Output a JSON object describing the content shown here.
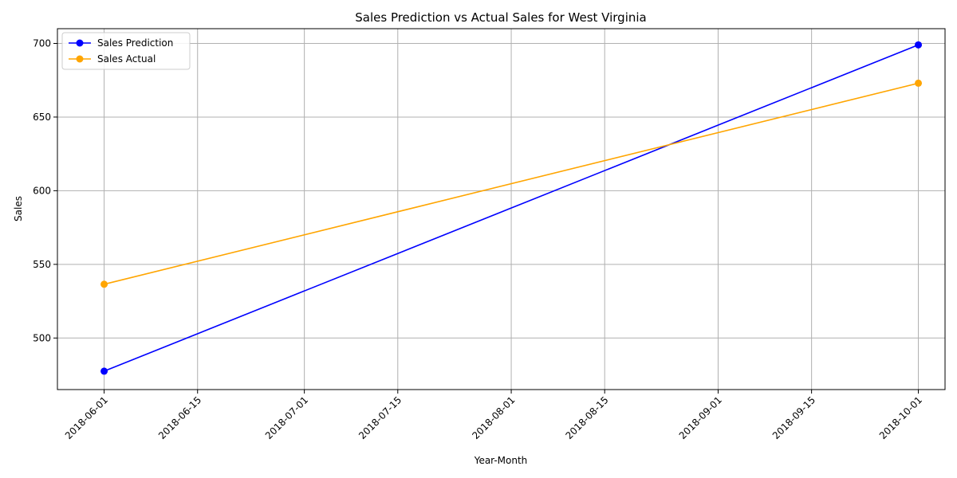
{
  "chart_data": {
    "type": "line",
    "title": "Sales Prediction vs Actual Sales for West Virginia",
    "xlabel": "Year-Month",
    "ylabel": "Sales",
    "x": [
      "2018-06-01",
      "2018-10-01"
    ],
    "series": [
      {
        "name": "Sales Prediction",
        "values": [
          477.5,
          699.0
        ],
        "color": "#0000ff"
      },
      {
        "name": "Sales Actual",
        "values": [
          536.5,
          673.0
        ],
        "color": "#ffa500"
      }
    ],
    "x_ticks": [
      "2018-06-01",
      "2018-06-15",
      "2018-07-01",
      "2018-07-15",
      "2018-08-01",
      "2018-08-15",
      "2018-09-01",
      "2018-09-15",
      "2018-10-01"
    ],
    "y_ticks": [
      500,
      550,
      600,
      650,
      700
    ],
    "xlim": [
      "2018-05-25",
      "2018-10-05"
    ],
    "ylim": [
      465,
      710
    ],
    "grid": true,
    "legend_position": "top-left"
  }
}
